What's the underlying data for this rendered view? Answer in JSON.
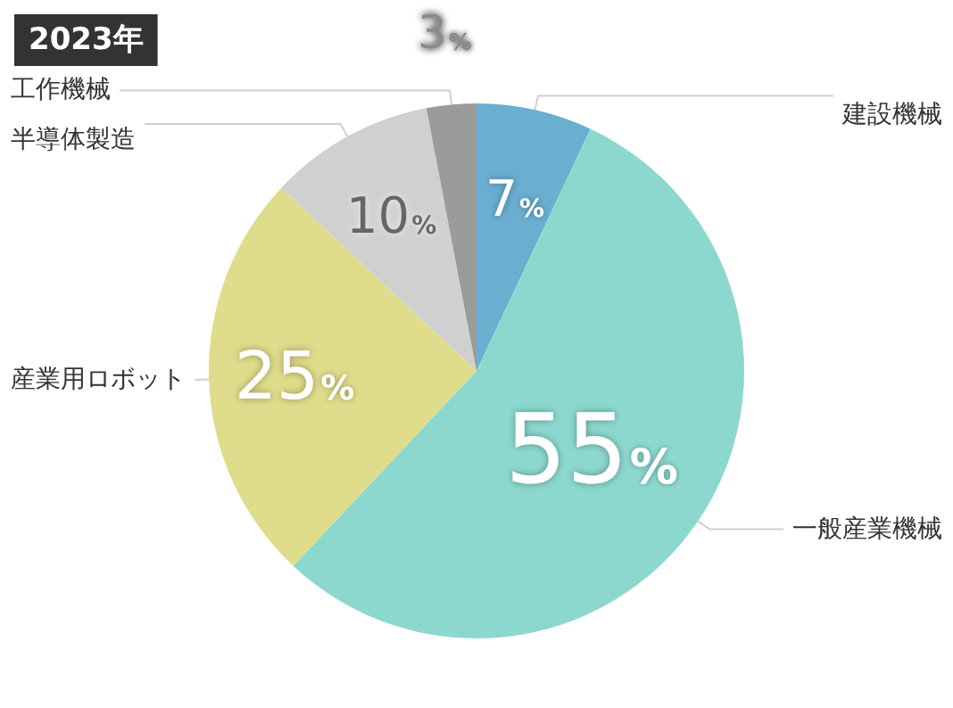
{
  "chart_data": {
    "type": "pie",
    "title": "2023年",
    "categories": [
      "建設機械",
      "一般産業機械",
      "産業用ロボット",
      "半導体製造",
      "工作機械"
    ],
    "values": [
      7,
      55,
      25,
      10,
      3
    ],
    "colors": [
      "#6aaed0",
      "#8cd8cf",
      "#dfdc8b",
      "#d0d0d0",
      "#9b9b9b"
    ],
    "value_labels": [
      "7%",
      "55%",
      "25%",
      "10%",
      "3%"
    ]
  }
}
